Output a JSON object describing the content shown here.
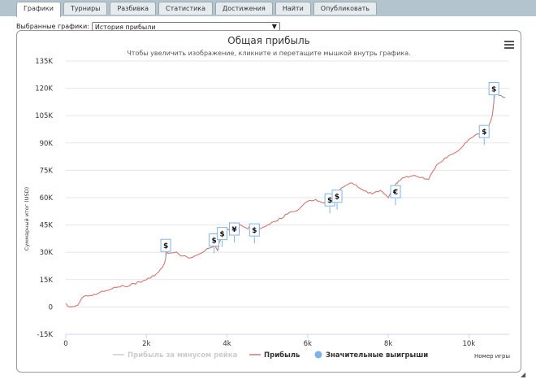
{
  "tabs": [
    {
      "label": "Графики",
      "active": true
    },
    {
      "label": "Турниры",
      "active": false
    },
    {
      "label": "Разбивка",
      "active": false
    },
    {
      "label": "Статистика",
      "active": false
    },
    {
      "label": "Достижения",
      "active": false
    },
    {
      "label": "Найти",
      "active": false
    },
    {
      "label": "Опубликовать",
      "active": false
    }
  ],
  "selector": {
    "label": "Выбранные графики:",
    "value": "История прибыли"
  },
  "menu_icon": "hamburger-menu-icon",
  "colors": {
    "tabbar": "#b4c4cc",
    "profit_line": "#d07870",
    "rake_line": "#cccccc",
    "big_win_marker": "#7eb3e8",
    "title": "#333333"
  },
  "chart_data": {
    "type": "line",
    "title": "Общая прибыль",
    "subtitle": "Чтобы увеличить изображение, кликните и перетащите мышкой внутрь графика.",
    "xlabel": "Номер игры",
    "ylabel": "Суммарный итог (USD)",
    "xlim": [
      0,
      11000
    ],
    "ylim": [
      -15000,
      135000
    ],
    "x_ticks": [
      0,
      2000,
      4000,
      6000,
      8000,
      10000
    ],
    "x_tick_labels": [
      "0",
      "2k",
      "4k",
      "6k",
      "8k",
      "10k"
    ],
    "y_ticks": [
      -15000,
      0,
      15000,
      30000,
      45000,
      60000,
      75000,
      90000,
      105000,
      120000,
      135000
    ],
    "y_tick_labels": [
      "-15K",
      "0",
      "15K",
      "30K",
      "45K",
      "60K",
      "75K",
      "90K",
      "105K",
      "120K",
      "135K"
    ],
    "legend": [
      "Прибыль за минусом рейка",
      "Прибыль",
      "Значительные выигрыши"
    ],
    "series": [
      {
        "name": "Прибыль",
        "x": [
          0,
          100,
          300,
          400,
          550,
          700,
          1000,
          1300,
          1600,
          2000,
          2300,
          2450,
          2500,
          2700,
          2900,
          3100,
          3300,
          3500,
          3700,
          3770,
          3800,
          3900,
          4000,
          4100,
          4200,
          4300,
          4400,
          4500,
          4550,
          4650,
          4750,
          5000,
          5200,
          5500,
          5800,
          6000,
          6200,
          6400,
          6500,
          6600,
          6700,
          6900,
          7100,
          7300,
          7600,
          7800,
          8000,
          8200,
          8250,
          8400,
          8600,
          8800,
          9000,
          9200,
          9500,
          9800,
          10000,
          10200,
          10350,
          10400,
          10500,
          10580,
          10650,
          10700,
          10800,
          10900
        ],
        "values": [
          2000,
          0,
          1000,
          5000,
          6000,
          7000,
          9000,
          11000,
          12000,
          15000,
          19000,
          24000,
          30000,
          30000,
          28000,
          27000,
          29000,
          32000,
          34000,
          31000,
          35000,
          40000,
          43000,
          42000,
          44000,
          45000,
          44000,
          43000,
          44000,
          42000,
          43000,
          45000,
          47000,
          51000,
          54000,
          58000,
          59000,
          57000,
          60000,
          57000,
          62000,
          66000,
          68000,
          65000,
          62000,
          64000,
          60000,
          68000,
          69000,
          71000,
          72000,
          71000,
          70000,
          78000,
          83000,
          87000,
          92000,
          95000,
          96000,
          94000,
          100000,
          105000,
          119000,
          117000,
          116000,
          115000
        ]
      },
      {
        "name": "Прибыль за минусом рейка",
        "x": [],
        "values": []
      }
    ],
    "big_wins": [
      {
        "x": 2480,
        "y": 30000,
        "symbol": "$"
      },
      {
        "x": 3680,
        "y": 33000,
        "symbol": "$"
      },
      {
        "x": 3880,
        "y": 36500,
        "symbol": "$"
      },
      {
        "x": 4180,
        "y": 39000,
        "symbol": "¥"
      },
      {
        "x": 4680,
        "y": 38500,
        "symbol": "$"
      },
      {
        "x": 6550,
        "y": 55000,
        "symbol": "$"
      },
      {
        "x": 6730,
        "y": 57000,
        "symbol": "$"
      },
      {
        "x": 8180,
        "y": 59500,
        "symbol": "€"
      },
      {
        "x": 10380,
        "y": 92500,
        "symbol": "$"
      },
      {
        "x": 10620,
        "y": 116000,
        "symbol": "$"
      }
    ]
  }
}
